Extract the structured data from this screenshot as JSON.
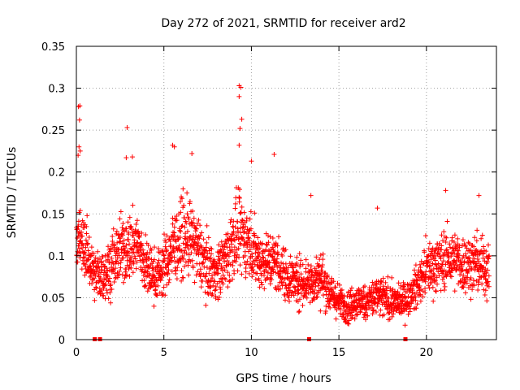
{
  "chart_data": {
    "type": "scatter",
    "title": "Day 272 of 2021, SRMTID for receiver ard2",
    "xlabel": "GPS time / hours",
    "ylabel": "SRMTID / TECUs",
    "xlim": [
      0,
      24
    ],
    "ylim": [
      0,
      0.35
    ],
    "x_ticks": [
      0,
      5,
      10,
      15,
      20
    ],
    "x_tick_labels": [
      "0",
      "5",
      "10",
      "15",
      "20"
    ],
    "y_ticks": [
      0,
      0.05,
      0.1,
      0.15,
      0.2,
      0.25,
      0.3,
      0.35
    ],
    "y_tick_labels": [
      "0",
      "0.05",
      "0.1",
      "0.15",
      "0.2",
      "0.25",
      "0.3",
      "0.35"
    ],
    "grid": true,
    "marker": "+",
    "series_color": "#ff0000",
    "grid_color": "#a0a0a0",
    "profile": {
      "description": "running envelope of the scattered points (hour, central value, spread)",
      "hours": [
        0.0,
        0.5,
        1.0,
        1.5,
        2.0,
        2.5,
        3.0,
        3.5,
        4.0,
        4.5,
        5.0,
        5.5,
        6.0,
        6.5,
        7.0,
        7.5,
        8.0,
        8.5,
        9.0,
        9.5,
        10.0,
        10.5,
        11.0,
        11.5,
        12.0,
        12.5,
        13.0,
        13.5,
        14.0,
        14.5,
        15.0,
        15.5,
        16.0,
        16.5,
        17.0,
        17.5,
        18.0,
        18.5,
        19.0,
        19.5,
        20.0,
        20.5,
        21.0,
        21.5,
        22.0,
        22.5,
        23.0,
        23.5
      ],
      "center": [
        0.12,
        0.11,
        0.08,
        0.075,
        0.09,
        0.105,
        0.11,
        0.115,
        0.085,
        0.075,
        0.085,
        0.11,
        0.12,
        0.12,
        0.105,
        0.085,
        0.08,
        0.095,
        0.12,
        0.125,
        0.11,
        0.095,
        0.095,
        0.09,
        0.075,
        0.07,
        0.07,
        0.07,
        0.075,
        0.055,
        0.045,
        0.04,
        0.045,
        0.045,
        0.05,
        0.05,
        0.045,
        0.045,
        0.05,
        0.065,
        0.085,
        0.09,
        0.095,
        0.095,
        0.09,
        0.09,
        0.09,
        0.085
      ],
      "spread": [
        0.04,
        0.035,
        0.03,
        0.03,
        0.035,
        0.04,
        0.04,
        0.04,
        0.035,
        0.03,
        0.035,
        0.04,
        0.045,
        0.045,
        0.04,
        0.035,
        0.03,
        0.04,
        0.045,
        0.045,
        0.04,
        0.035,
        0.035,
        0.035,
        0.03,
        0.03,
        0.03,
        0.03,
        0.03,
        0.025,
        0.02,
        0.02,
        0.02,
        0.02,
        0.025,
        0.025,
        0.02,
        0.02,
        0.02,
        0.025,
        0.03,
        0.035,
        0.035,
        0.035,
        0.035,
        0.035,
        0.035,
        0.035
      ]
    },
    "highlight_points": [
      {
        "x": 0.12,
        "y": 0.278
      },
      {
        "x": 0.2,
        "y": 0.279
      },
      {
        "x": 0.18,
        "y": 0.262
      },
      {
        "x": 0.15,
        "y": 0.23
      },
      {
        "x": 0.22,
        "y": 0.225
      },
      {
        "x": 0.1,
        "y": 0.22
      },
      {
        "x": 2.9,
        "y": 0.253
      },
      {
        "x": 2.85,
        "y": 0.217
      },
      {
        "x": 3.2,
        "y": 0.218
      },
      {
        "x": 5.5,
        "y": 0.232
      },
      {
        "x": 5.6,
        "y": 0.23
      },
      {
        "x": 6.6,
        "y": 0.222
      },
      {
        "x": 9.3,
        "y": 0.303
      },
      {
        "x": 9.4,
        "y": 0.301
      },
      {
        "x": 9.3,
        "y": 0.29
      },
      {
        "x": 9.35,
        "y": 0.252
      },
      {
        "x": 9.3,
        "y": 0.232
      },
      {
        "x": 9.45,
        "y": 0.263
      },
      {
        "x": 11.3,
        "y": 0.221
      },
      {
        "x": 10.0,
        "y": 0.213
      },
      {
        "x": 21.1,
        "y": 0.178
      },
      {
        "x": 17.2,
        "y": 0.157
      },
      {
        "x": 13.4,
        "y": 0.172
      },
      {
        "x": 23.0,
        "y": 0.172
      }
    ],
    "zero_points": [
      {
        "x": 1.05,
        "y": 0
      },
      {
        "x": 1.35,
        "y": 0
      },
      {
        "x": 13.3,
        "y": 0
      },
      {
        "x": 18.8,
        "y": 0
      }
    ]
  }
}
